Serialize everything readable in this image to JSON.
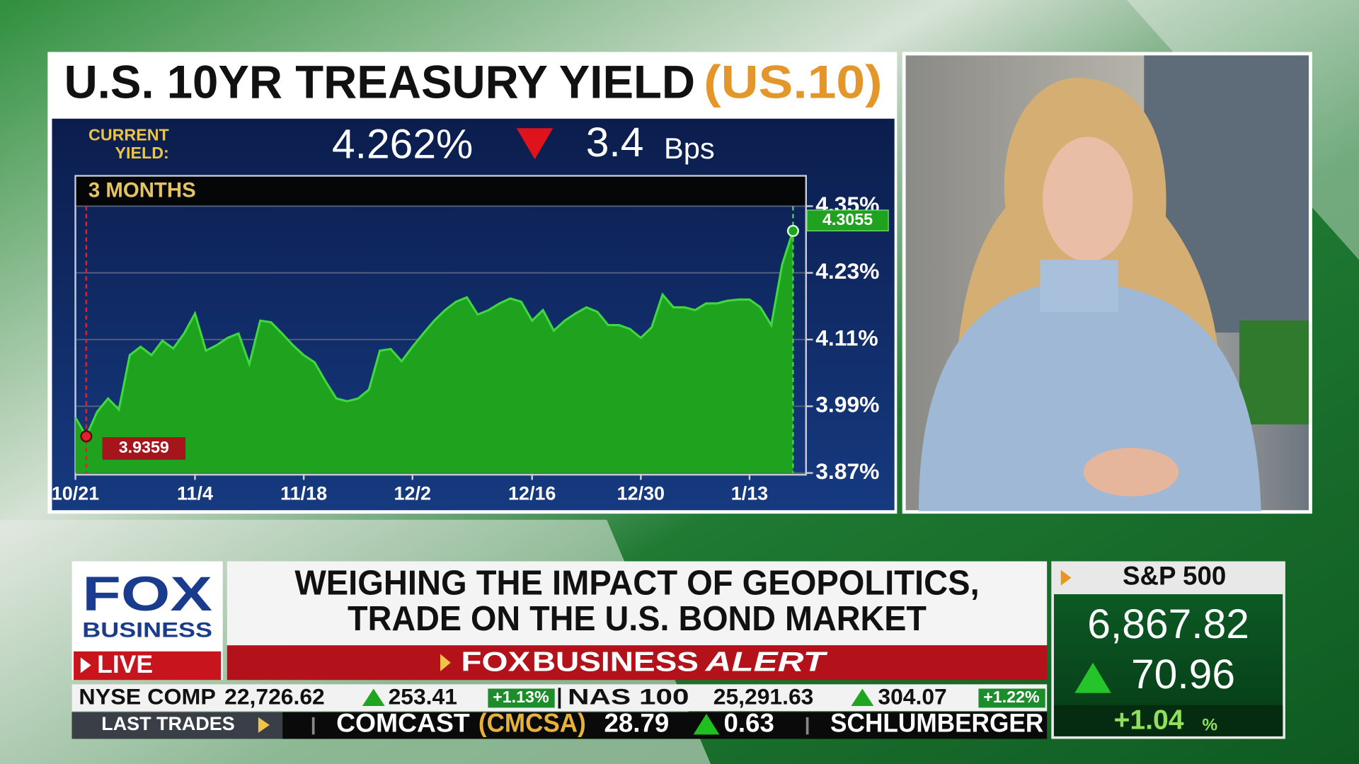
{
  "chart_data": {
    "type": "area",
    "title": "U.S. 10YR TREASURY YIELD",
    "title_symbol": "(US.10)",
    "current_yield_label": "CURRENT YIELD:",
    "current_yield": "4.262%",
    "change": "3.4",
    "change_unit": "Bps",
    "period": "3 MONTHS",
    "color": "#1fa31f",
    "line_color": "#3fd83f",
    "grid": true,
    "categories": [
      "10/21",
      null,
      null,
      null,
      null,
      null,
      null,
      null,
      null,
      null,
      null,
      "11/4",
      null,
      null,
      null,
      null,
      null,
      null,
      null,
      null,
      null,
      "11/18",
      null,
      null,
      null,
      null,
      null,
      null,
      null,
      null,
      null,
      "12/2",
      null,
      null,
      null,
      null,
      null,
      null,
      null,
      null,
      null,
      null,
      "12/16",
      null,
      null,
      null,
      null,
      null,
      null,
      null,
      null,
      null,
      "12/30",
      null,
      null,
      null,
      null,
      null,
      null,
      null,
      null,
      null,
      "1/13",
      null,
      null,
      null,
      null
    ],
    "values": [
      3.97,
      3.9359,
      3.98,
      4.004,
      3.984,
      4.082,
      4.097,
      4.082,
      4.108,
      4.094,
      4.121,
      4.157,
      4.09,
      4.1,
      4.113,
      4.121,
      4.066,
      4.144,
      4.141,
      4.121,
      4.1,
      4.082,
      4.069,
      4.035,
      4.004,
      3.999,
      4.004,
      4.02,
      4.09,
      4.093,
      4.071,
      4.097,
      4.121,
      4.144,
      4.163,
      4.178,
      4.186,
      4.155,
      4.163,
      4.175,
      4.184,
      4.178,
      4.144,
      4.163,
      4.126,
      4.144,
      4.157,
      4.168,
      4.16,
      4.136,
      4.136,
      4.129,
      4.113,
      4.132,
      4.191,
      4.168,
      4.168,
      4.163,
      4.175,
      4.175,
      4.18,
      4.182,
      4.182,
      4.168,
      4.136,
      4.245,
      4.3055
    ],
    "ylim": [
      3.87,
      4.35
    ],
    "yticks": [
      {
        "value": 3.87,
        "label": "3.87%"
      },
      {
        "value": 3.99,
        "label": "3.99%"
      },
      {
        "value": 4.11,
        "label": "4.11%"
      },
      {
        "value": 4.23,
        "label": "4.23%"
      },
      {
        "value": 4.35,
        "label": "4.35%"
      }
    ]
  },
  "logo": {
    "brand": "FOX",
    "network": "BUSINESS",
    "live": "LIVE"
  },
  "headline": {
    "line1": "WEIGHING THE IMPACT OF GEOPOLITICS,",
    "line2": "TRADE ON THE U.S. BOND MARKET"
  },
  "alert": {
    "brand": "FOX",
    "network": "BUSINESS",
    "word": "ALERT"
  },
  "index_box": {
    "name": "S&P 500",
    "value": "6,867.82",
    "change": "70.96",
    "percent": "+1.04",
    "percent_sign": "%"
  },
  "ticker": {
    "row1": [
      {
        "name": "NYSE COMP",
        "value": "22,726.62",
        "change": "253.41",
        "percent": "+1.13%"
      },
      {
        "name": "NAS 100",
        "value": "25,291.63",
        "change": "304.07",
        "percent": "+1.22%"
      }
    ],
    "row2": {
      "label": "LAST TRADES",
      "name": "COMCAST",
      "symbol": "(CMCSA)",
      "price": "28.79",
      "change": "0.63",
      "next": "SCHLUMBERGER"
    }
  }
}
